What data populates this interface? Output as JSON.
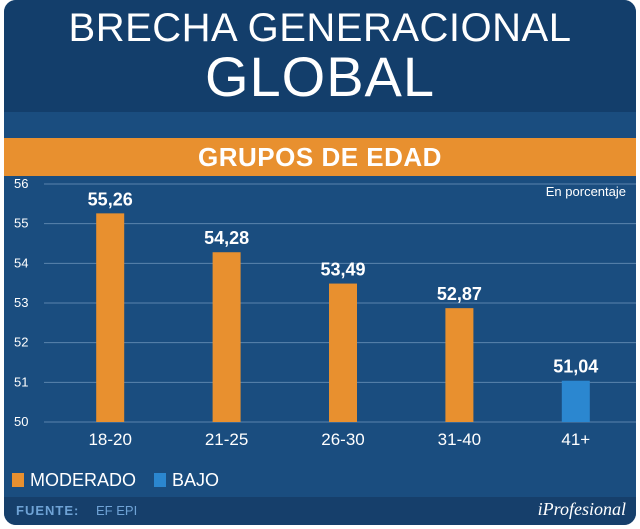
{
  "header": {
    "title_line1": "BRECHA GENERACIONAL",
    "title_line2": "GLOBAL"
  },
  "band": {
    "label": "GRUPOS DE EDAD"
  },
  "unit_note": "En porcentaje",
  "legend": [
    {
      "label": "MODERADO",
      "color": "#e8902f"
    },
    {
      "label": "BAJO",
      "color": "#2b87d0"
    }
  ],
  "footer": {
    "source_label": "FUENTE:",
    "source_value": "EF EPI",
    "brand": "iProfesional"
  },
  "chart_data": {
    "type": "bar",
    "title": "GRUPOS DE EDAD",
    "xlabel": "",
    "ylabel": "En porcentaje",
    "ylim": [
      50,
      56
    ],
    "yticks": [
      "50",
      "51",
      "52",
      "53",
      "54",
      "55",
      "56"
    ],
    "categories": [
      "18-20",
      "21-25",
      "26-30",
      "31-40",
      "41+"
    ],
    "values": [
      55.26,
      54.28,
      53.49,
      52.87,
      51.04
    ],
    "value_labels": [
      "55,26",
      "54,28",
      "53,49",
      "52,87",
      "51,04"
    ],
    "levels": [
      "MODERADO",
      "MODERADO",
      "MODERADO",
      "MODERADO",
      "BAJO"
    ],
    "colors": {
      "MODERADO": "#e8902f",
      "BAJO": "#2b87d0"
    },
    "grid": true
  }
}
